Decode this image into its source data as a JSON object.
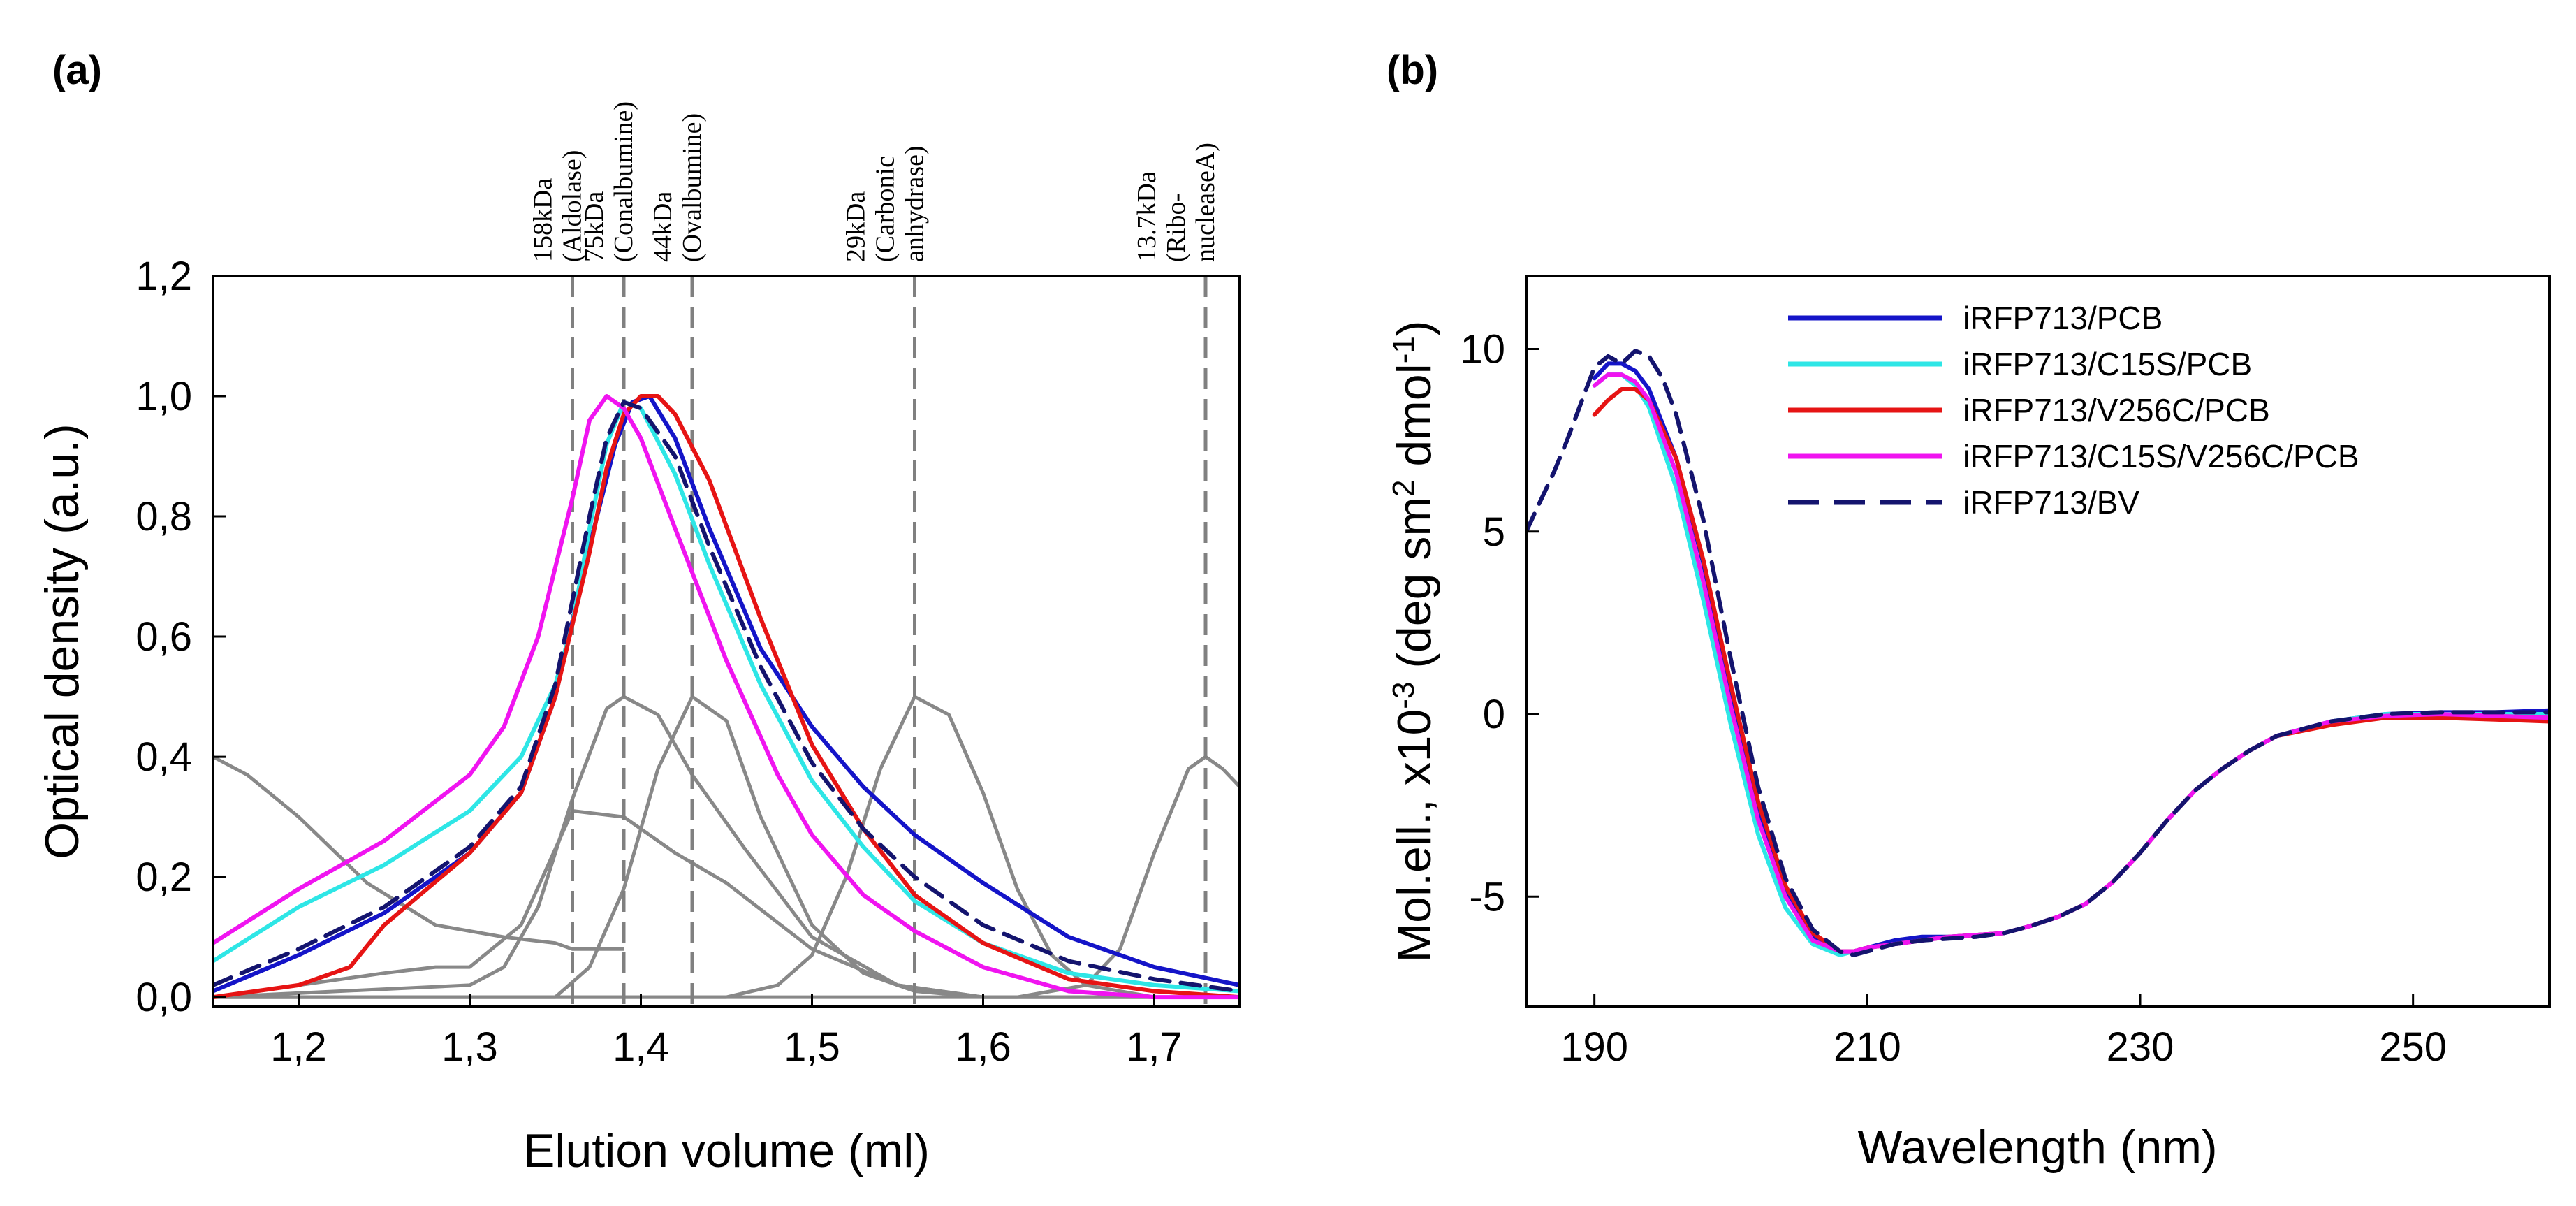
{
  "chart_data": [
    {
      "id": "a",
      "panel_label": "(a)",
      "type": "line",
      "xlabel": "Elution volume (ml)",
      "ylabel": "Optical density (a.u.)",
      "xlim": [
        1.15,
        1.75
      ],
      "ylim": [
        -0.015,
        1.2
      ],
      "xticks": [
        1.2,
        1.3,
        1.4,
        1.5,
        1.6,
        1.7
      ],
      "xtick_labels": [
        "1,2",
        "1,3",
        "1,4",
        "1,5",
        "1,6",
        "1,7"
      ],
      "yticks": [
        0.0,
        0.2,
        0.4,
        0.6,
        0.8,
        1.0,
        1.2
      ],
      "ytick_labels": [
        "0,0",
        "0,2",
        "0,4",
        "0,6",
        "0,8",
        "1,0",
        "1,2"
      ],
      "markers": [
        {
          "x": 1.36,
          "lines": [
            "158kDa",
            "(Aldolase)"
          ]
        },
        {
          "x": 1.39,
          "lines": [
            "75kDa",
            "(Conalbumine)"
          ]
        },
        {
          "x": 1.43,
          "lines": [
            "44kDa",
            "(Ovalbumine)"
          ]
        },
        {
          "x": 1.56,
          "lines": [
            "29kDa",
            "(Carbonic",
            "anhydrase)"
          ]
        },
        {
          "x": 1.73,
          "lines": [
            "13.7kDa",
            "(Ribo-",
            "nucleaseA)"
          ]
        }
      ],
      "series": [
        {
          "name": "iRFP713/PCB",
          "color": "#1414c8",
          "dash": "solid",
          "x": [
            1.15,
            1.2,
            1.25,
            1.3,
            1.33,
            1.35,
            1.37,
            1.385,
            1.395,
            1.405,
            1.42,
            1.44,
            1.47,
            1.5,
            1.53,
            1.56,
            1.6,
            1.65,
            1.7,
            1.75
          ],
          "y": [
            0.01,
            0.07,
            0.14,
            0.24,
            0.34,
            0.5,
            0.75,
            0.92,
            0.99,
            1.0,
            0.93,
            0.78,
            0.58,
            0.45,
            0.35,
            0.27,
            0.19,
            0.1,
            0.05,
            0.02
          ]
        },
        {
          "name": "iRFP713/C15S/PCB",
          "color": "#2ee6e6",
          "dash": "solid",
          "x": [
            1.15,
            1.2,
            1.25,
            1.3,
            1.33,
            1.35,
            1.36,
            1.37,
            1.38,
            1.39,
            1.4,
            1.42,
            1.44,
            1.47,
            1.5,
            1.53,
            1.56,
            1.6,
            1.65,
            1.7,
            1.75
          ],
          "y": [
            0.06,
            0.15,
            0.22,
            0.31,
            0.4,
            0.52,
            0.62,
            0.78,
            0.92,
            0.99,
            0.98,
            0.87,
            0.72,
            0.52,
            0.36,
            0.25,
            0.16,
            0.09,
            0.04,
            0.02,
            0.01
          ]
        },
        {
          "name": "iRFP713/V256C/PCB",
          "color": "#e61414",
          "dash": "solid",
          "x": [
            1.15,
            1.2,
            1.23,
            1.25,
            1.3,
            1.33,
            1.35,
            1.37,
            1.38,
            1.39,
            1.4,
            1.41,
            1.42,
            1.44,
            1.47,
            1.5,
            1.53,
            1.56,
            1.6,
            1.65,
            1.7,
            1.75
          ],
          "y": [
            0.0,
            0.02,
            0.05,
            0.12,
            0.24,
            0.34,
            0.5,
            0.74,
            0.88,
            0.97,
            1.0,
            1.0,
            0.97,
            0.86,
            0.63,
            0.42,
            0.28,
            0.17,
            0.09,
            0.03,
            0.01,
            0.0
          ]
        },
        {
          "name": "iRFP713/C15S/V256C/PCB",
          "color": "#f014f0",
          "dash": "solid",
          "x": [
            1.15,
            1.2,
            1.25,
            1.3,
            1.32,
            1.34,
            1.36,
            1.37,
            1.38,
            1.39,
            1.4,
            1.42,
            1.45,
            1.48,
            1.5,
            1.53,
            1.56,
            1.6,
            1.65,
            1.7,
            1.75
          ],
          "y": [
            0.09,
            0.18,
            0.26,
            0.37,
            0.45,
            0.6,
            0.83,
            0.96,
            1.0,
            0.98,
            0.93,
            0.78,
            0.56,
            0.37,
            0.27,
            0.17,
            0.11,
            0.05,
            0.01,
            0.0,
            0.0
          ]
        },
        {
          "name": "iRFP713/BV",
          "color": "#14146e",
          "dash": "dashed",
          "x": [
            1.15,
            1.2,
            1.25,
            1.3,
            1.33,
            1.35,
            1.37,
            1.38,
            1.39,
            1.4,
            1.42,
            1.44,
            1.47,
            1.5,
            1.53,
            1.56,
            1.6,
            1.65,
            1.7,
            1.75
          ],
          "y": [
            0.02,
            0.08,
            0.15,
            0.25,
            0.35,
            0.52,
            0.8,
            0.93,
            0.99,
            0.98,
            0.9,
            0.75,
            0.55,
            0.39,
            0.28,
            0.2,
            0.12,
            0.06,
            0.03,
            0.01
          ]
        }
      ],
      "standards": [
        {
          "color": "#888888",
          "x": [
            1.15,
            1.17,
            1.2,
            1.24,
            1.28,
            1.32,
            1.35,
            1.36,
            1.37,
            1.38,
            1.39
          ],
          "y": [
            0.4,
            0.37,
            0.3,
            0.19,
            0.12,
            0.1,
            0.09,
            0.08,
            0.08,
            0.08,
            0.08
          ]
        },
        {
          "color": "#888888",
          "x": [
            1.15,
            1.2,
            1.25,
            1.28,
            1.3,
            1.33,
            1.36,
            1.39,
            1.42,
            1.45,
            1.5,
            1.55,
            1.6,
            1.65,
            1.7,
            1.75
          ],
          "y": [
            0.0,
            0.02,
            0.04,
            0.05,
            0.05,
            0.12,
            0.31,
            0.3,
            0.24,
            0.19,
            0.08,
            0.02,
            0.0,
            0.0,
            0.0,
            0.0
          ]
        },
        {
          "color": "#888888",
          "x": [
            1.15,
            1.3,
            1.32,
            1.34,
            1.36,
            1.38,
            1.39,
            1.41,
            1.43,
            1.46,
            1.5,
            1.55,
            1.6,
            1.65,
            1.75
          ],
          "y": [
            0.0,
            0.02,
            0.05,
            0.15,
            0.33,
            0.48,
            0.5,
            0.47,
            0.37,
            0.25,
            0.1,
            0.02,
            0.0,
            0.0,
            0.0
          ]
        },
        {
          "color": "#888888",
          "x": [
            1.15,
            1.35,
            1.37,
            1.39,
            1.41,
            1.43,
            1.45,
            1.47,
            1.5,
            1.53,
            1.56,
            1.6,
            1.65,
            1.75
          ],
          "y": [
            0.0,
            0.0,
            0.05,
            0.18,
            0.38,
            0.5,
            0.46,
            0.3,
            0.12,
            0.04,
            0.01,
            0.0,
            0.0,
            0.0
          ]
        },
        {
          "color": "#888888",
          "x": [
            1.15,
            1.45,
            1.48,
            1.5,
            1.52,
            1.54,
            1.56,
            1.58,
            1.6,
            1.62,
            1.64,
            1.66,
            1.7,
            1.75
          ],
          "y": [
            0.0,
            0.0,
            0.02,
            0.07,
            0.2,
            0.38,
            0.5,
            0.47,
            0.34,
            0.18,
            0.07,
            0.02,
            0.0,
            0.0
          ]
        },
        {
          "color": "#888888",
          "x": [
            1.15,
            1.62,
            1.66,
            1.68,
            1.7,
            1.72,
            1.73,
            1.74,
            1.75
          ],
          "y": [
            0.0,
            0.0,
            0.02,
            0.08,
            0.24,
            0.38,
            0.4,
            0.38,
            0.35
          ]
        }
      ]
    },
    {
      "id": "b",
      "panel_label": "(b)",
      "type": "line",
      "xlabel": "Wavelength (nm)",
      "ylabel": "Mol.ell., x10⁻³ (deg sm² dmol⁻¹)",
      "xlim": [
        185,
        260
      ],
      "ylim": [
        -8,
        12
      ],
      "xticks": [
        190,
        210,
        230,
        250
      ],
      "xtick_labels": [
        "190",
        "210",
        "230",
        "250"
      ],
      "yticks": [
        -5,
        0,
        5,
        10
      ],
      "ytick_labels": [
        "-5",
        "0",
        "5",
        "10"
      ],
      "legend_position": "top-right",
      "series": [
        {
          "name": "iRFP713/PCB",
          "color": "#1414c8",
          "dash": "solid",
          "x": [
            190,
            191,
            192,
            193,
            194,
            196,
            198,
            200,
            202,
            204,
            206,
            208,
            209,
            210,
            212,
            214,
            216,
            218,
            220,
            222,
            224,
            226,
            228,
            230,
            232,
            234,
            236,
            238,
            240,
            244,
            248,
            252,
            256,
            260
          ],
          "y": [
            9.2,
            9.6,
            9.6,
            9.4,
            8.9,
            7.0,
            4.1,
            0.6,
            -2.6,
            -4.9,
            -6.1,
            -6.5,
            -6.5,
            -6.4,
            -6.2,
            -6.1,
            -6.1,
            -6.05,
            -6.0,
            -5.8,
            -5.55,
            -5.2,
            -4.6,
            -3.8,
            -2.9,
            -2.1,
            -1.5,
            -1.0,
            -0.6,
            -0.2,
            0.0,
            0.05,
            0.05,
            0.1
          ]
        },
        {
          "name": "iRFP713/C15S/PCB",
          "color": "#2ee6e6",
          "dash": "solid",
          "x": [
            190,
            191,
            192,
            193,
            194,
            196,
            198,
            200,
            202,
            204,
            206,
            208,
            209,
            210,
            212,
            214,
            216,
            218,
            220,
            222,
            224,
            226,
            228,
            230,
            232,
            234,
            236,
            238,
            240,
            244,
            248,
            252,
            256,
            260
          ],
          "y": [
            9.0,
            9.3,
            9.3,
            9.0,
            8.4,
            6.2,
            3.1,
            -0.3,
            -3.3,
            -5.3,
            -6.3,
            -6.6,
            -6.5,
            -6.4,
            -6.3,
            -6.2,
            -6.1,
            -6.05,
            -6.0,
            -5.8,
            -5.55,
            -5.2,
            -4.6,
            -3.8,
            -2.9,
            -2.1,
            -1.5,
            -1.0,
            -0.6,
            -0.2,
            0.0,
            0.0,
            0.0,
            0.0
          ]
        },
        {
          "name": "iRFP713/V256C/PCB",
          "color": "#e61414",
          "dash": "solid",
          "x": [
            190,
            191,
            192,
            193,
            194,
            196,
            198,
            200,
            202,
            204,
            206,
            208,
            209,
            210,
            212,
            214,
            216,
            218,
            220,
            222,
            224,
            226,
            228,
            230,
            232,
            234,
            236,
            238,
            240,
            244,
            248,
            252,
            256,
            260
          ],
          "y": [
            8.2,
            8.6,
            8.9,
            8.9,
            8.6,
            7.0,
            4.2,
            0.8,
            -2.4,
            -4.7,
            -6.0,
            -6.5,
            -6.5,
            -6.4,
            -6.3,
            -6.2,
            -6.1,
            -6.05,
            -6.0,
            -5.8,
            -5.55,
            -5.2,
            -4.6,
            -3.8,
            -2.9,
            -2.1,
            -1.5,
            -1.0,
            -0.6,
            -0.3,
            -0.1,
            -0.1,
            -0.15,
            -0.2
          ]
        },
        {
          "name": "iRFP713/C15S/V256C/PCB",
          "color": "#f014f0",
          "dash": "solid",
          "x": [
            190,
            191,
            192,
            193,
            194,
            196,
            198,
            200,
            202,
            204,
            206,
            208,
            209,
            210,
            212,
            214,
            216,
            218,
            220,
            222,
            224,
            226,
            228,
            230,
            232,
            234,
            236,
            238,
            240,
            244,
            248,
            252,
            256,
            260
          ],
          "y": [
            9.0,
            9.3,
            9.3,
            9.1,
            8.6,
            6.6,
            3.6,
            0.2,
            -2.9,
            -5.0,
            -6.2,
            -6.5,
            -6.5,
            -6.4,
            -6.3,
            -6.2,
            -6.1,
            -6.05,
            -6.0,
            -5.8,
            -5.55,
            -5.2,
            -4.6,
            -3.8,
            -2.9,
            -2.1,
            -1.5,
            -1.0,
            -0.6,
            -0.2,
            -0.05,
            0.0,
            -0.05,
            -0.1
          ]
        },
        {
          "name": "iRFP713/BV",
          "color": "#14146e",
          "dash": "dashed",
          "x": [
            185,
            186,
            187,
            188,
            189,
            190,
            191,
            192,
            193,
            194,
            195,
            196,
            198,
            200,
            202,
            204,
            206,
            208,
            209,
            210,
            212,
            214,
            216,
            218,
            220,
            222,
            224,
            226,
            228,
            230,
            232,
            234,
            236,
            238,
            240,
            244,
            248,
            252,
            256,
            260
          ],
          "y": [
            5.0,
            5.8,
            6.6,
            7.5,
            8.5,
            9.5,
            9.8,
            9.6,
            9.95,
            9.8,
            9.2,
            8.2,
            5.3,
            1.5,
            -2.0,
            -4.5,
            -5.9,
            -6.5,
            -6.6,
            -6.5,
            -6.3,
            -6.2,
            -6.15,
            -6.1,
            -6.0,
            -5.8,
            -5.55,
            -5.2,
            -4.6,
            -3.8,
            -2.9,
            -2.1,
            -1.5,
            -1.0,
            -0.6,
            -0.2,
            0.0,
            0.05,
            0.05,
            0.05
          ]
        }
      ]
    }
  ]
}
